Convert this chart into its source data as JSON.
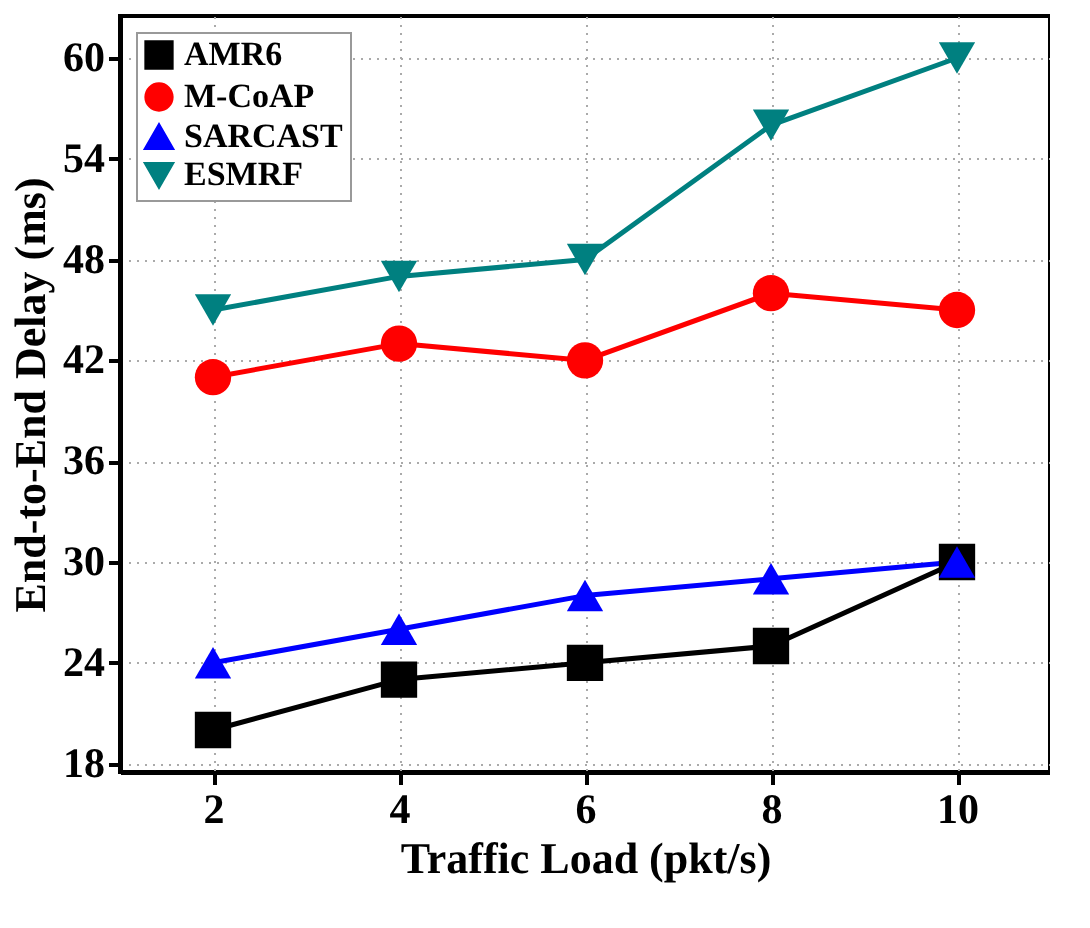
{
  "chart_data": {
    "type": "line",
    "xlabel": "Traffic Load (pkt/s)",
    "ylabel": "End-to-End Delay (ms)",
    "x": [
      2,
      4,
      6,
      8,
      10
    ],
    "series": [
      {
        "name": "AMR6",
        "color": "#000000",
        "marker": "square",
        "values": [
          20,
          23,
          24,
          25,
          30
        ]
      },
      {
        "name": "M-CoAP",
        "color": "#ff0000",
        "marker": "circle",
        "values": [
          41,
          43,
          42,
          46,
          45
        ]
      },
      {
        "name": "SARCAST",
        "color": "#0000ff",
        "marker": "triangle",
        "values": [
          24,
          26,
          28,
          29,
          30
        ]
      },
      {
        "name": "ESMRF",
        "color": "#008080",
        "marker": "triangle-down",
        "values": [
          45,
          47,
          48,
          56,
          60
        ]
      }
    ],
    "xlim": [
      1,
      11
    ],
    "xticks": [
      2,
      4,
      6,
      8,
      10
    ],
    "ylim": [
      17.5,
      62.5
    ],
    "yticks": [
      18,
      24,
      30,
      36,
      42,
      48,
      54,
      60
    ],
    "grid": true,
    "legend": "top left",
    "line_style": "solid"
  }
}
